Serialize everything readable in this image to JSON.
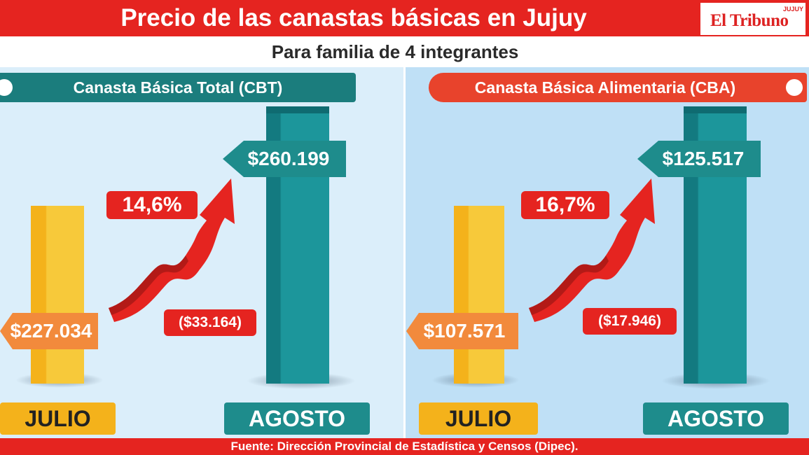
{
  "header": {
    "title": "Precio de las canastas básicas en Jujuy",
    "logo_text": "El Tribuno",
    "logo_region": "JUJUY",
    "subtitle": "Para familia de 4 integrantes"
  },
  "colors": {
    "red": "#e52420",
    "teal": "#1e8c8c",
    "orange": "#f28a3c",
    "yellow": "#f4b21b",
    "panel_left_bg": "#dbeefa",
    "panel_right_bg": "#bfe0f6"
  },
  "panels": [
    {
      "title": "Canasta Básica Total (CBT)",
      "july_value": "$227.034",
      "august_value": "$260.199",
      "percent_change": "14,6%",
      "difference": "($33.164)",
      "july_label": "JULIO",
      "august_label": "AGOSTO"
    },
    {
      "title": "Canasta Básica Alimentaria (CBA)",
      "july_value": "$107.571",
      "august_value": "$125.517",
      "percent_change": "16,7%",
      "difference": "($17.946)",
      "july_label": "JULIO",
      "august_label": "AGOSTO"
    }
  ],
  "footer": {
    "source": "Fuente: Dirección Provincial de Estadística y Censos (Dipec)."
  },
  "chart_data": [
    {
      "type": "bar",
      "title": "Canasta Básica Total (CBT)",
      "categories": [
        "JULIO",
        "AGOSTO"
      ],
      "values": [
        227034,
        260199
      ],
      "annotations": [
        "14,6%",
        "($33.164)"
      ]
    },
    {
      "type": "bar",
      "title": "Canasta Básica Alimentaria (CBA)",
      "categories": [
        "JULIO",
        "AGOSTO"
      ],
      "values": [
        107571,
        125517
      ],
      "annotations": [
        "16,7%",
        "($17.946)"
      ]
    }
  ]
}
